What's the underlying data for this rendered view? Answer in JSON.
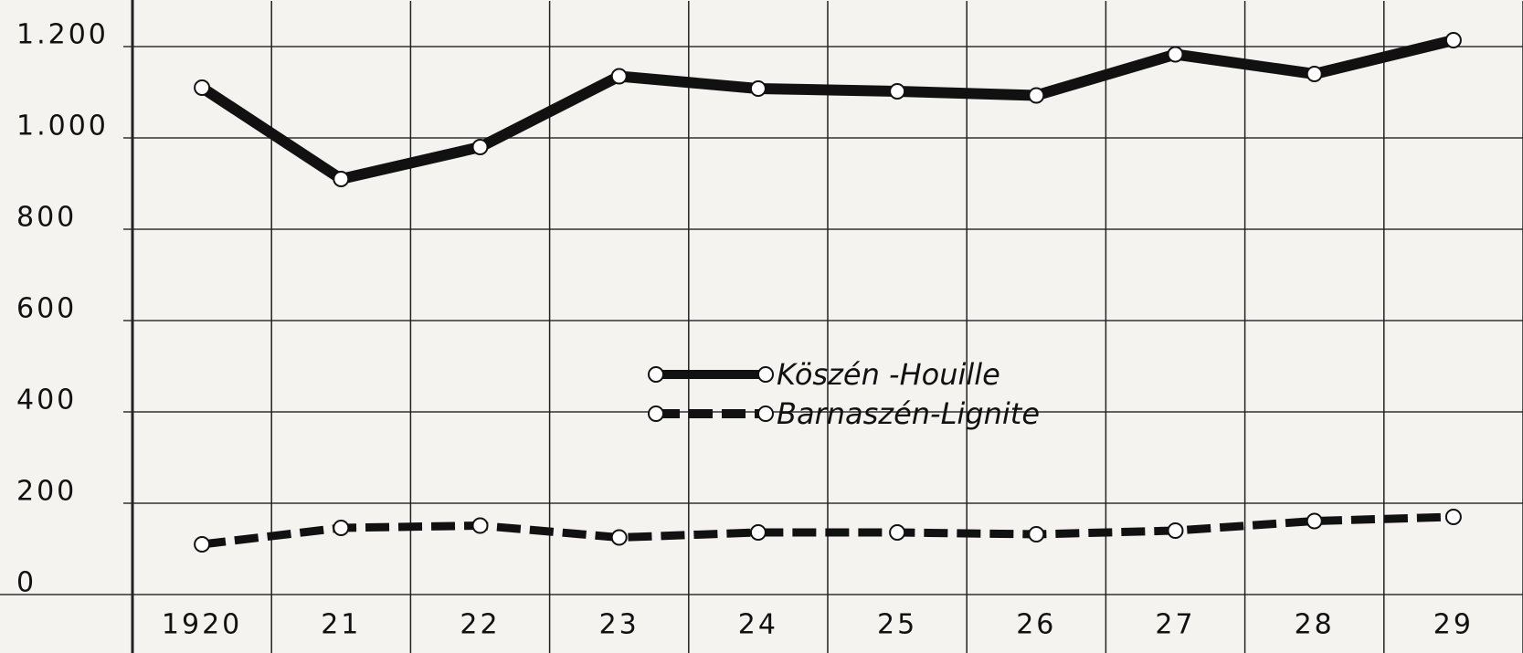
{
  "chart_data": {
    "type": "line",
    "categories": [
      "1920",
      "21",
      "22",
      "23",
      "24",
      "25",
      "26",
      "27",
      "28",
      "29"
    ],
    "series": [
      {
        "name": "Köszén -Houille",
        "color": "#111111",
        "dash": false,
        "values": [
          1110,
          910,
          980,
          1135,
          1108,
          1102,
          1093,
          1183,
          1140,
          1214
        ]
      },
      {
        "name": "Barnaszén-Lignite",
        "color": "#111111",
        "dash": true,
        "values": [
          110,
          146,
          151,
          125,
          136,
          136,
          132,
          140,
          161,
          170
        ]
      }
    ],
    "ylim": [
      0,
      1300
    ],
    "yticks": [
      0,
      200,
      400,
      600,
      800,
      {
        "value": 1000,
        "label": "1.000"
      },
      {
        "value": 1200,
        "label": "1.200"
      }
    ],
    "grid": true
  }
}
